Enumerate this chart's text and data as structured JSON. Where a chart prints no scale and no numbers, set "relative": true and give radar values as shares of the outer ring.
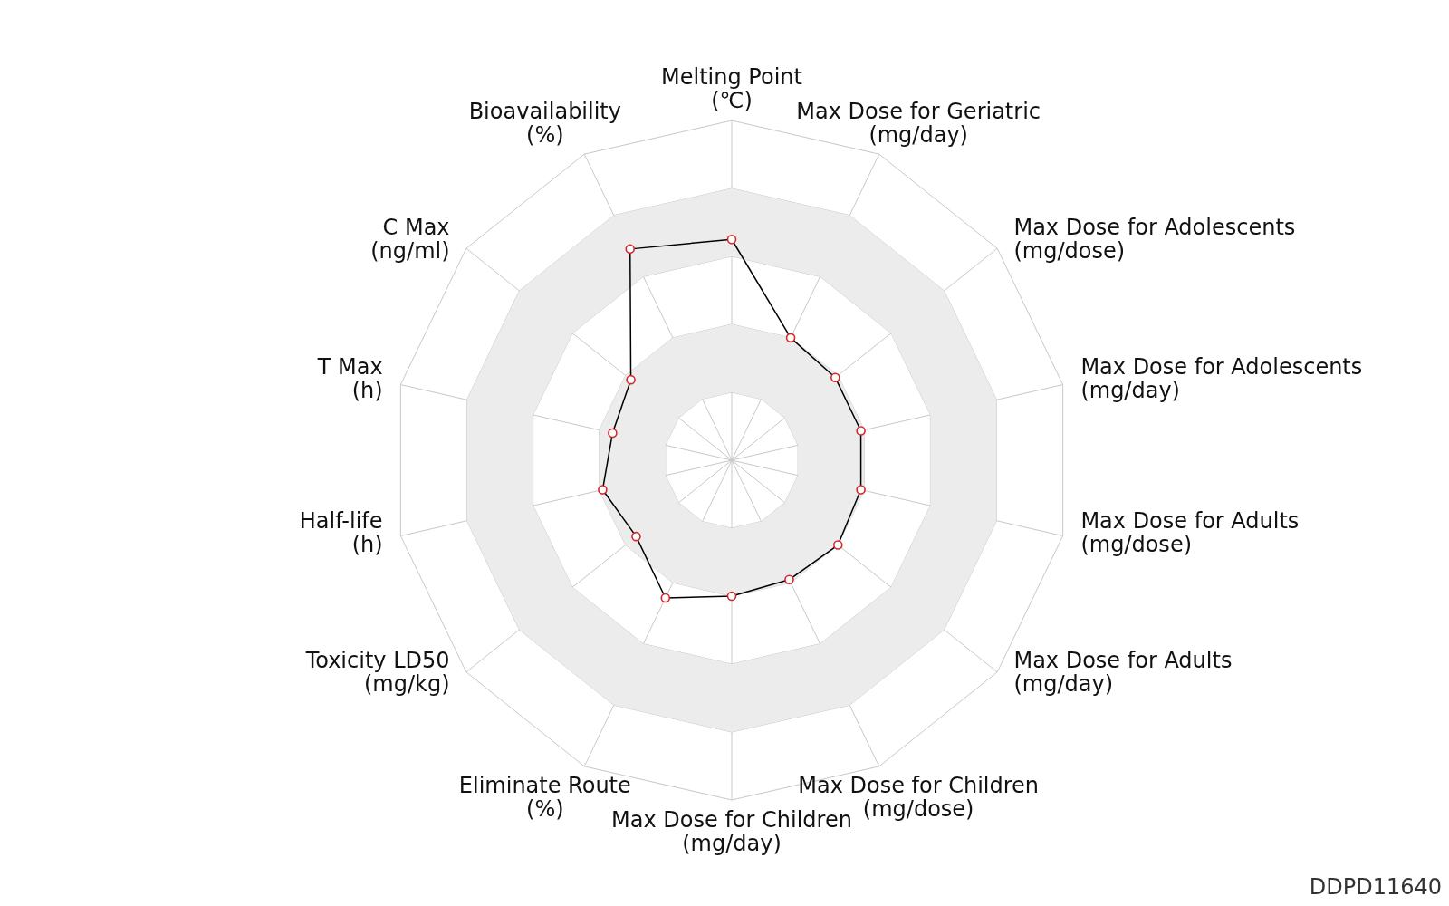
{
  "chart_data": {
    "type": "radar",
    "relative": true,
    "grid": true,
    "marker": "circle",
    "legend": false,
    "categories": [
      "Melting Point\n(℃)",
      "Max Dose for Geriatric\n(mg/day)",
      "Max Dose for Adolescents\n(mg/dose)",
      "Max Dose for Adolescents\n(mg/day)",
      "Max Dose for Adults\n(mg/dose)",
      "Max Dose for Adults\n(mg/day)",
      "Max Dose for Children\n(mg/dose)",
      "Max Dose for Children\n(mg/day)",
      "Eliminate Route\n(%)",
      "Toxicity LD50\n(mg/kg)",
      "Half-life\n(h)",
      "T Max\n(h)",
      "C Max\n(ng/ml)",
      "Bioavailability\n(%)"
    ],
    "series": [
      {
        "color": "#000000",
        "values": [
          0.65,
          0.4,
          0.39,
          0.39,
          0.39,
          0.4,
          0.39,
          0.4,
          0.45,
          0.36,
          0.39,
          0.36,
          0.38,
          0.69
        ]
      }
    ],
    "annotations": [
      "DDPD11640"
    ]
  }
}
